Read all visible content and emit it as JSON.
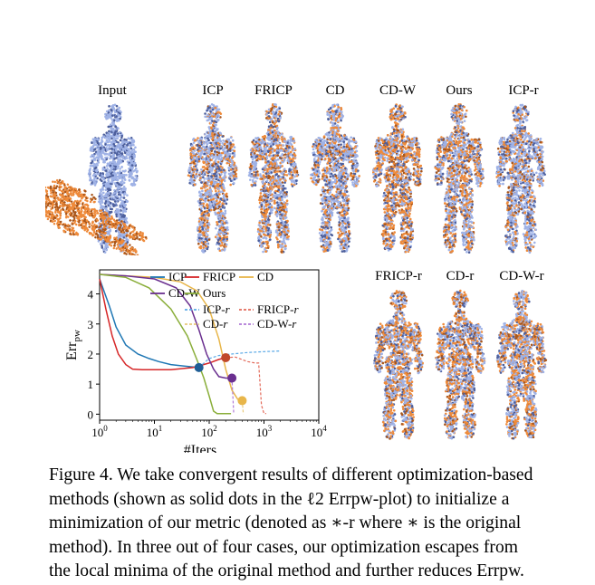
{
  "panels": {
    "top": [
      "Input",
      "ICP",
      "FRICP",
      "CD",
      "CD-W",
      "Ours",
      "ICP-r"
    ],
    "bottom": [
      "FRICP-r",
      "CD-r",
      "CD-W-r"
    ]
  },
  "colors": {
    "body": "#9fb2e6",
    "body_dark": "#4d5f9c",
    "source": "#ee8a3a",
    "source_dark": "#a8561c"
  },
  "chart_data": {
    "type": "line",
    "xscale": "log",
    "xlim": [
      1,
      10000
    ],
    "ylim": [
      -0.2,
      4.8
    ],
    "xticks": [
      "10^0",
      "10^1",
      "10^2",
      "10^3",
      "10^4"
    ],
    "yticks": [
      0,
      1,
      2,
      3,
      4
    ],
    "xlabel": "#Iters",
    "ylabel": "Err_pw",
    "legend_position": "top-right",
    "series": [
      {
        "name": "ICP",
        "color": "#1f77b4",
        "style": "solid",
        "points": [
          [
            1,
            4.5
          ],
          [
            1.5,
            3.6
          ],
          [
            2,
            2.9
          ],
          [
            3,
            2.3
          ],
          [
            5,
            2.0
          ],
          [
            8,
            1.85
          ],
          [
            12,
            1.75
          ],
          [
            20,
            1.65
          ],
          [
            35,
            1.6
          ],
          [
            65,
            1.55
          ]
        ]
      },
      {
        "name": "FRICP",
        "color": "#d62728",
        "style": "solid",
        "points": [
          [
            1,
            4.5
          ],
          [
            1.3,
            3.5
          ],
          [
            1.7,
            2.6
          ],
          [
            2.2,
            2.0
          ],
          [
            3,
            1.65
          ],
          [
            4,
            1.5
          ],
          [
            6,
            1.48
          ],
          [
            10,
            1.48
          ],
          [
            20,
            1.48
          ],
          [
            50,
            1.55
          ],
          [
            100,
            1.7
          ],
          [
            150,
            1.82
          ],
          [
            200,
            1.88
          ]
        ]
      },
      {
        "name": "CD",
        "color": "#e8b64a",
        "style": "solid",
        "points": [
          [
            1,
            4.65
          ],
          [
            3,
            4.6
          ],
          [
            10,
            4.55
          ],
          [
            30,
            4.4
          ],
          [
            60,
            4.1
          ],
          [
            100,
            3.5
          ],
          [
            150,
            2.5
          ],
          [
            200,
            1.5
          ],
          [
            260,
            0.8
          ],
          [
            330,
            0.5
          ],
          [
            400,
            0.45
          ]
        ]
      },
      {
        "name": "CD-W",
        "color": "#6a2f8f",
        "style": "solid",
        "points": [
          [
            1,
            4.65
          ],
          [
            3,
            4.6
          ],
          [
            10,
            4.5
          ],
          [
            25,
            4.2
          ],
          [
            45,
            3.6
          ],
          [
            65,
            2.8
          ],
          [
            90,
            2.0
          ],
          [
            120,
            1.5
          ],
          [
            150,
            1.25
          ],
          [
            200,
            1.2
          ],
          [
            260,
            1.2
          ]
        ]
      },
      {
        "name": "Ours",
        "color": "#8aae3a",
        "style": "solid",
        "points": [
          [
            1,
            4.65
          ],
          [
            3,
            4.55
          ],
          [
            8,
            4.2
          ],
          [
            20,
            3.5
          ],
          [
            40,
            2.6
          ],
          [
            60,
            1.8
          ],
          [
            80,
            1.2
          ],
          [
            100,
            0.6
          ],
          [
            120,
            0.1
          ],
          [
            140,
            0.02
          ],
          [
            180,
            0.02
          ],
          [
            250,
            0.02
          ]
        ]
      },
      {
        "name": "ICP-r",
        "color": "#5aa9e6",
        "style": "dotted",
        "points": [
          [
            65,
            1.55
          ],
          [
            80,
            1.7
          ],
          [
            100,
            1.85
          ],
          [
            150,
            1.95
          ],
          [
            250,
            2.0
          ],
          [
            500,
            2.05
          ],
          [
            1000,
            2.08
          ],
          [
            2000,
            2.1
          ]
        ]
      },
      {
        "name": "FRICP-r",
        "color": "#e36a5a",
        "style": "dotted",
        "points": [
          [
            200,
            1.88
          ],
          [
            300,
            1.9
          ],
          [
            500,
            1.75
          ],
          [
            700,
            1.7
          ],
          [
            800,
            1.7
          ],
          [
            900,
            0.3
          ],
          [
            1000,
            0.02
          ],
          [
            1100,
            0.02
          ]
        ]
      },
      {
        "name": "CD-r",
        "color": "#e8c97a",
        "style": "dotted",
        "points": [
          [
            400,
            0.45
          ],
          [
            420,
            0.0
          ]
        ]
      },
      {
        "name": "CD-W-r",
        "color": "#b07ad6",
        "style": "dotted",
        "points": [
          [
            260,
            1.2
          ],
          [
            270,
            0.6
          ],
          [
            280,
            0.0
          ]
        ]
      }
    ],
    "dots": [
      {
        "series": "ICP",
        "x": 65,
        "y": 1.55,
        "color": "#1f5e96"
      },
      {
        "series": "FRICP",
        "x": 200,
        "y": 1.88,
        "color": "#c0482a"
      },
      {
        "series": "CD-W",
        "x": 260,
        "y": 1.2,
        "color": "#6a2f8f"
      },
      {
        "series": "CD",
        "x": 400,
        "y": 0.45,
        "color": "#e8b64a"
      }
    ]
  },
  "caption": [
    "Figure 4. We take convergent results of different optimization-based",
    "methods (shown as solid dots in the ℓ2 Errpw-plot) to initialize a",
    "minimization of our metric (denoted as ∗-r where ∗ is the original",
    "method). In three out of four cases, our optimization escapes from",
    "the local minima of the original method and further reduces Errpw."
  ]
}
